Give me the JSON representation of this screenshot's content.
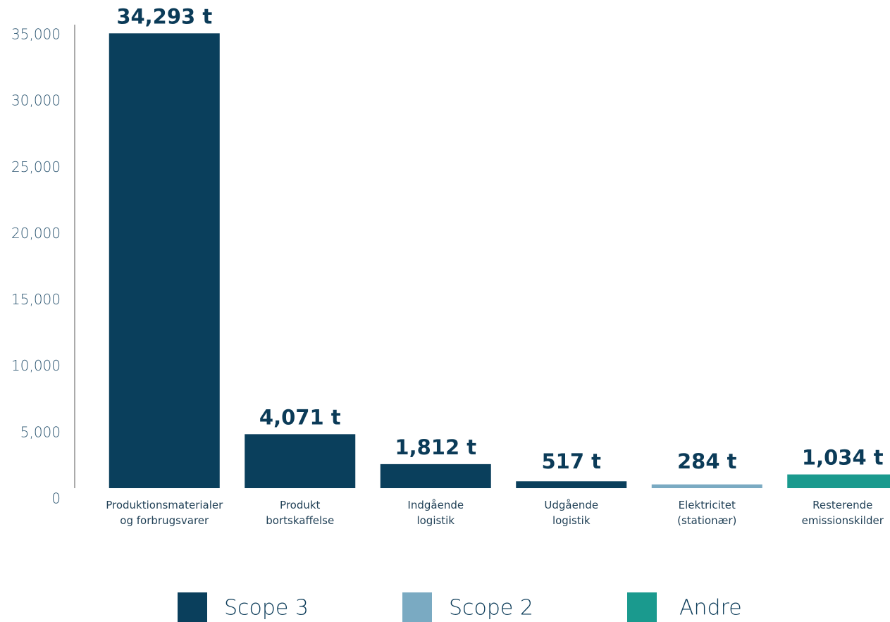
{
  "chart_data": {
    "type": "bar",
    "categories": [
      [
        "Produktionsmaterialer",
        "og forbrugsvarer"
      ],
      [
        "Produkt",
        "bortskaffelse"
      ],
      [
        "Indgående",
        "logistik"
      ],
      [
        "Udgående",
        "logistik"
      ],
      [
        "Elektricitet",
        "(stationær)"
      ],
      [
        "Resterende",
        "emissionskilder"
      ]
    ],
    "series": [
      {
        "name": "Scope 3",
        "color": "#0a3f5c",
        "values": [
          34293,
          4071,
          1812,
          517,
          null,
          null
        ],
        "value_labels": [
          "34,293 t",
          "4,071 t",
          "1,812 t",
          "517 t",
          null,
          null
        ]
      },
      {
        "name": "Scope 2",
        "color": "#7aaac2",
        "values": [
          null,
          null,
          null,
          null,
          284,
          null
        ],
        "value_labels": [
          null,
          null,
          null,
          null,
          "284 t",
          null
        ]
      },
      {
        "name": "Andre",
        "color": "#1a9a8e",
        "values": [
          null,
          null,
          null,
          null,
          null,
          1034
        ],
        "value_labels": [
          null,
          null,
          null,
          null,
          null,
          "1,034 t"
        ]
      }
    ],
    "ylim": [
      0,
      35000
    ],
    "yticks": [
      0,
      {
        "value": 5000,
        "label": "5,000"
      },
      {
        "value": 10000,
        "label": "10,000"
      },
      {
        "value": 15000,
        "label": "15,000"
      },
      {
        "value": 20000,
        "label": "20,000"
      },
      {
        "value": 25000,
        "label": "25,000"
      },
      {
        "value": 30000,
        "label": "30,000"
      },
      {
        "value": 35000,
        "label": "35,000"
      }
    ],
    "grid": false,
    "legend": "bottom"
  }
}
